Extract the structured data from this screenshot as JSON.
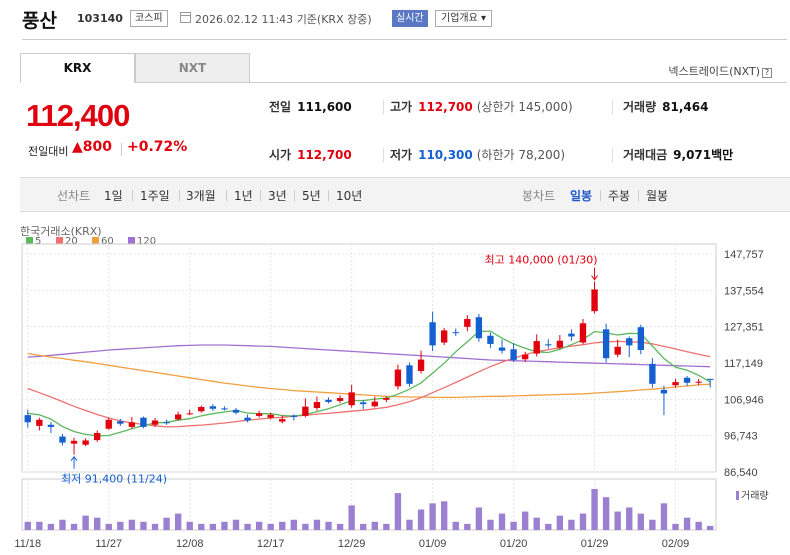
{
  "header": {
    "name": "풍산",
    "code": "103140",
    "market": "코스피",
    "datetime": "2026.02.12 11:43",
    "basis": "기준(KRX 장중)",
    "realtime_badge": "실시간",
    "overview_button": "기업개요 ▾"
  },
  "tabs": [
    {
      "label": "KRX"
    },
    {
      "label": "NXT"
    }
  ],
  "nxt_link": "넥스트레이드(NXT)",
  "quote": {
    "price": "112,400",
    "change_label": "전일대비",
    "change": "▲800",
    "change_pct": "+0.72%"
  },
  "summary": {
    "prev_close_label": "전일",
    "prev_close": "111,600",
    "high_label": "고가",
    "high": "112,700",
    "upper_limit": "(상한가 145,000)",
    "volume_label": "거래량",
    "volume": "81,464",
    "open_label": "시가",
    "open": "112,700",
    "low_label": "저가",
    "low": "110,300",
    "lower_limit": "(하한가 78,200)",
    "amount_label": "거래대금",
    "amount": "9,071",
    "amount_unit": "백만"
  },
  "toolbar": {
    "line_label": "선차트",
    "periods": [
      "1일",
      "1주일",
      "3개월",
      "1년",
      "3년",
      "5년",
      "10년"
    ],
    "candle_label": "봉차트",
    "candle_periods": [
      "일봉",
      "주봉",
      "월봉"
    ],
    "active_candle": "일봉"
  },
  "colors": {
    "up": "#e0000e",
    "down": "#1560d0",
    "ma5": "#5cb85c",
    "ma20": "#f07070",
    "ma60": "#f0a040",
    "ma120": "#a070d0",
    "volume": "#9b7fd0"
  },
  "chart_data": {
    "type": "candlestick",
    "title": "한국거래소(KRX)",
    "legend": [
      {
        "name": "5",
        "color": "#5cb85c"
      },
      {
        "name": "20",
        "color": "#f07070"
      },
      {
        "name": "60",
        "color": "#f0a040"
      },
      {
        "name": "120",
        "color": "#a070d0"
      }
    ],
    "y_ticks": [
      "147,757",
      "137,554",
      "127,351",
      "117,149",
      "106,946",
      "96,743",
      "86,540"
    ],
    "ylim": [
      86540,
      147757
    ],
    "x_ticks": [
      "11/18",
      "11/27",
      "12/08",
      "12/17",
      "12/29",
      "01/09",
      "01/20",
      "01/29",
      "02/09"
    ],
    "high_annotation": "최고 140,000 (01/30)",
    "low_annotation": "최저 91,400 (11/24)",
    "volume_label": "거래량",
    "candles": [
      {
        "o": 102500,
        "c": 100500,
        "h": 104000,
        "l": 99000
      },
      {
        "o": 99500,
        "c": 101200,
        "h": 101800,
        "l": 98200
      },
      {
        "o": 99800,
        "c": 99200,
        "h": 100600,
        "l": 97500
      },
      {
        "o": 96500,
        "c": 94800,
        "h": 97200,
        "l": 94000
      },
      {
        "o": 94500,
        "c": 95300,
        "h": 96200,
        "l": 91400
      },
      {
        "o": 94200,
        "c": 95400,
        "h": 96000,
        "l": 93800
      },
      {
        "o": 95500,
        "c": 97500,
        "h": 98200,
        "l": 95000
      },
      {
        "o": 98700,
        "c": 101200,
        "h": 101800,
        "l": 98400
      },
      {
        "o": 100800,
        "c": 100100,
        "h": 101500,
        "l": 99500
      },
      {
        "o": 99200,
        "c": 100500,
        "h": 102000,
        "l": 98700
      },
      {
        "o": 101800,
        "c": 99200,
        "h": 102100,
        "l": 98800
      },
      {
        "o": 99800,
        "c": 101000,
        "h": 101700,
        "l": 99200
      },
      {
        "o": 100500,
        "c": 100400,
        "h": 101200,
        "l": 99800
      },
      {
        "o": 101300,
        "c": 102700,
        "h": 103500,
        "l": 101000
      },
      {
        "o": 102800,
        "c": 103000,
        "h": 104000,
        "l": 102500
      },
      {
        "o": 103600,
        "c": 104800,
        "h": 105200,
        "l": 103200
      },
      {
        "o": 105000,
        "c": 104300,
        "h": 105600,
        "l": 103700
      },
      {
        "o": 104400,
        "c": 104100,
        "h": 105000,
        "l": 103800
      },
      {
        "o": 104000,
        "c": 103200,
        "h": 104500,
        "l": 102700
      },
      {
        "o": 101800,
        "c": 101000,
        "h": 102700,
        "l": 100500
      },
      {
        "o": 102300,
        "c": 103000,
        "h": 103700,
        "l": 101800
      },
      {
        "o": 101800,
        "c": 102600,
        "h": 103200,
        "l": 101300
      },
      {
        "o": 100700,
        "c": 101400,
        "h": 102400,
        "l": 100200
      },
      {
        "o": 102400,
        "c": 102000,
        "h": 102700,
        "l": 101000
      },
      {
        "o": 102300,
        "c": 104900,
        "h": 107200,
        "l": 101900
      },
      {
        "o": 104500,
        "c": 106200,
        "h": 107700,
        "l": 103800
      },
      {
        "o": 106800,
        "c": 106200,
        "h": 107500,
        "l": 105800
      },
      {
        "o": 106500,
        "c": 107300,
        "h": 108100,
        "l": 105900
      },
      {
        "o": 105300,
        "c": 108900,
        "h": 111000,
        "l": 104600
      },
      {
        "o": 106100,
        "c": 105600,
        "h": 106700,
        "l": 104200
      },
      {
        "o": 105000,
        "c": 106300,
        "h": 107700,
        "l": 104700
      },
      {
        "o": 106800,
        "c": 107300,
        "h": 107700,
        "l": 106200
      },
      {
        "o": 110600,
        "c": 115300,
        "h": 116700,
        "l": 109700
      },
      {
        "o": 116500,
        "c": 111300,
        "h": 117300,
        "l": 110500
      },
      {
        "o": 114900,
        "c": 118100,
        "h": 120600,
        "l": 114200
      },
      {
        "o": 128600,
        "c": 122100,
        "h": 131600,
        "l": 120500
      },
      {
        "o": 122900,
        "c": 126300,
        "h": 127000,
        "l": 122200
      },
      {
        "o": 125800,
        "c": 125600,
        "h": 126800,
        "l": 124700
      },
      {
        "o": 127300,
        "c": 129500,
        "h": 130600,
        "l": 126100
      },
      {
        "o": 130000,
        "c": 124100,
        "h": 130900,
        "l": 123100
      },
      {
        "o": 124800,
        "c": 122500,
        "h": 125700,
        "l": 121400
      },
      {
        "o": 121500,
        "c": 120600,
        "h": 123700,
        "l": 119800
      },
      {
        "o": 121000,
        "c": 118000,
        "h": 122700,
        "l": 117400
      },
      {
        "o": 118200,
        "c": 119500,
        "h": 120300,
        "l": 117400
      },
      {
        "o": 119800,
        "c": 123300,
        "h": 125200,
        "l": 119000
      },
      {
        "o": 122400,
        "c": 122100,
        "h": 123800,
        "l": 121200
      },
      {
        "o": 121500,
        "c": 123400,
        "h": 125000,
        "l": 121000
      },
      {
        "o": 125400,
        "c": 124600,
        "h": 126600,
        "l": 123400
      },
      {
        "o": 122900,
        "c": 128300,
        "h": 129500,
        "l": 122400
      },
      {
        "o": 131700,
        "c": 137800,
        "h": 140000,
        "l": 131000
      },
      {
        "o": 126600,
        "c": 118500,
        "h": 128200,
        "l": 117300
      },
      {
        "o": 119500,
        "c": 121700,
        "h": 123700,
        "l": 118800
      },
      {
        "o": 124100,
        "c": 122100,
        "h": 124600,
        "l": 118800
      },
      {
        "o": 127200,
        "c": 120800,
        "h": 127900,
        "l": 119600
      },
      {
        "o": 116900,
        "c": 111300,
        "h": 118500,
        "l": 110200
      },
      {
        "o": 109600,
        "c": 108600,
        "h": 110800,
        "l": 102500
      },
      {
        "o": 110900,
        "c": 111800,
        "h": 112700,
        "l": 110200
      },
      {
        "o": 113000,
        "c": 111600,
        "h": 113500,
        "l": 110700
      },
      {
        "o": 111600,
        "c": 111900,
        "h": 112700,
        "l": 110900
      },
      {
        "o": 112700,
        "c": 112400,
        "h": 112700,
        "l": 110300
      }
    ],
    "volumes": [
      4,
      4,
      3,
      5,
      3,
      7,
      6,
      3,
      4,
      5,
      4,
      3,
      6,
      8,
      4,
      3,
      3,
      4,
      5,
      3,
      4,
      3,
      4,
      5,
      3,
      5,
      4,
      3,
      12,
      3,
      4,
      3,
      18,
      5,
      10,
      13,
      14,
      4,
      3,
      11,
      5,
      8,
      4,
      9,
      6,
      3,
      7,
      5,
      8,
      20,
      16,
      9,
      11,
      8,
      5,
      13,
      3,
      6,
      4,
      2
    ],
    "ma5": [
      103000,
      102600,
      101400,
      99300,
      97900,
      97100,
      96700,
      96800,
      97700,
      98700,
      99600,
      100300,
      100500,
      101100,
      101500,
      102300,
      102900,
      103400,
      103800,
      103100,
      102900,
      102900,
      102400,
      102200,
      102700,
      103500,
      104300,
      105400,
      106600,
      106600,
      107000,
      107300,
      108400,
      109800,
      111600,
      114300,
      117100,
      120300,
      123100,
      126000,
      126100,
      124100,
      122500,
      121300,
      120300,
      120100,
      121000,
      122300,
      123700,
      126000,
      125600,
      125000,
      125500,
      125400,
      121900,
      118400,
      116000,
      115100,
      113700,
      111800
    ],
    "ma20": [
      110000,
      108800,
      107600,
      106300,
      105000,
      103800,
      102700,
      101700,
      100900,
      100300,
      99900,
      99500,
      99200,
      99300,
      99500,
      99700,
      100000,
      100300,
      100700,
      101100,
      101400,
      101700,
      101900,
      102200,
      102500,
      102800,
      103000,
      103300,
      103600,
      103900,
      104300,
      104700,
      105400,
      106300,
      107400,
      108800,
      110200,
      111700,
      113200,
      114700,
      116100,
      117400,
      118500,
      119500,
      120300,
      120900,
      121400,
      121900,
      122300,
      122800,
      123100,
      123200,
      123100,
      123000,
      122500,
      121800,
      121100,
      120300,
      119600,
      118900
    ],
    "ma60": [
      119800,
      119300,
      118800,
      118400,
      117900,
      117500,
      117000,
      116500,
      116000,
      115500,
      115000,
      114500,
      114000,
      113500,
      113000,
      112500,
      112000,
      111500,
      111100,
      110700,
      110300,
      110000,
      109700,
      109400,
      109200,
      109000,
      108800,
      108600,
      108400,
      108200,
      108000,
      107800,
      107700,
      107600,
      107600,
      107500,
      107500,
      107500,
      107600,
      107700,
      107800,
      107800,
      107900,
      108000,
      108100,
      108200,
      108300,
      108400,
      108500,
      108700,
      108900,
      109100,
      109300,
      109600,
      109800,
      110100,
      110400,
      110700,
      111000,
      111200
    ],
    "ma120": [
      118800,
      119000,
      119300,
      119600,
      119900,
      120200,
      120500,
      120800,
      121000,
      121200,
      121400,
      121600,
      121800,
      122000,
      122100,
      122200,
      122200,
      122200,
      122100,
      122000,
      121900,
      121800,
      121600,
      121400,
      121200,
      121000,
      120800,
      120600,
      120400,
      120200,
      120000,
      119800,
      119600,
      119400,
      119200,
      119000,
      118800,
      118600,
      118400,
      118200,
      118000,
      117900,
      117800,
      117700,
      117600,
      117500,
      117400,
      117300,
      117200,
      117100,
      117000,
      116900,
      116800,
      116700,
      116600,
      116500,
      116400,
      116300,
      116200,
      116100
    ]
  }
}
